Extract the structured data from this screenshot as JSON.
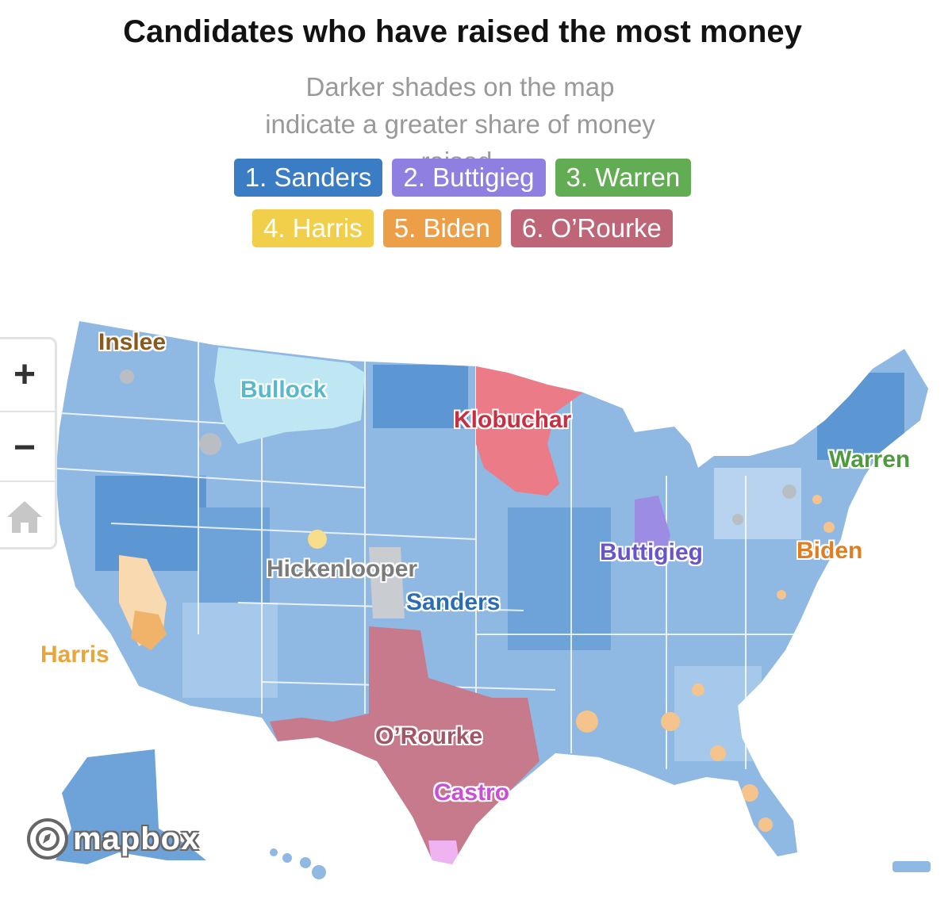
{
  "header": {
    "title": "Candidates who have raised the most money",
    "subtitle": "Darker shades on the map indicate a greater share of money raised."
  },
  "legend": [
    {
      "label": "1. Sanders",
      "color": "#3b7dc5"
    },
    {
      "label": "2. Buttigieg",
      "color": "#8f7fe0"
    },
    {
      "label": "3. Warren",
      "color": "#62ad54"
    },
    {
      "label": "4. Harris",
      "color": "#f2cf4a"
    },
    {
      "label": "5. Biden",
      "color": "#ec9f47"
    },
    {
      "label": "6. O’Rourke",
      "color": "#bf6578"
    }
  ],
  "map_labels": [
    {
      "text": "Inslee",
      "color": "#8a5a1c"
    },
    {
      "text": "Bullock",
      "color": "#58b9cc"
    },
    {
      "text": "Klobuchar",
      "color": "#c53142"
    },
    {
      "text": "Warren",
      "color": "#4f9a3f"
    },
    {
      "text": "Buttigieg",
      "color": "#6a55c8"
    },
    {
      "text": "Biden",
      "color": "#df7f22"
    },
    {
      "text": "Hickenlooper",
      "color": "#7b7b7b"
    },
    {
      "text": "Sanders",
      "color": "#2a6db5"
    },
    {
      "text": "Harris",
      "color": "#e8a53a"
    },
    {
      "text": "O’Rourke",
      "color": "#a35566"
    },
    {
      "text": "Castro",
      "color": "#c94fd6"
    }
  ],
  "controls": {
    "zoom_in": "+",
    "zoom_out": "−",
    "home_icon": "home-icon"
  },
  "attribution": "mapbox"
}
